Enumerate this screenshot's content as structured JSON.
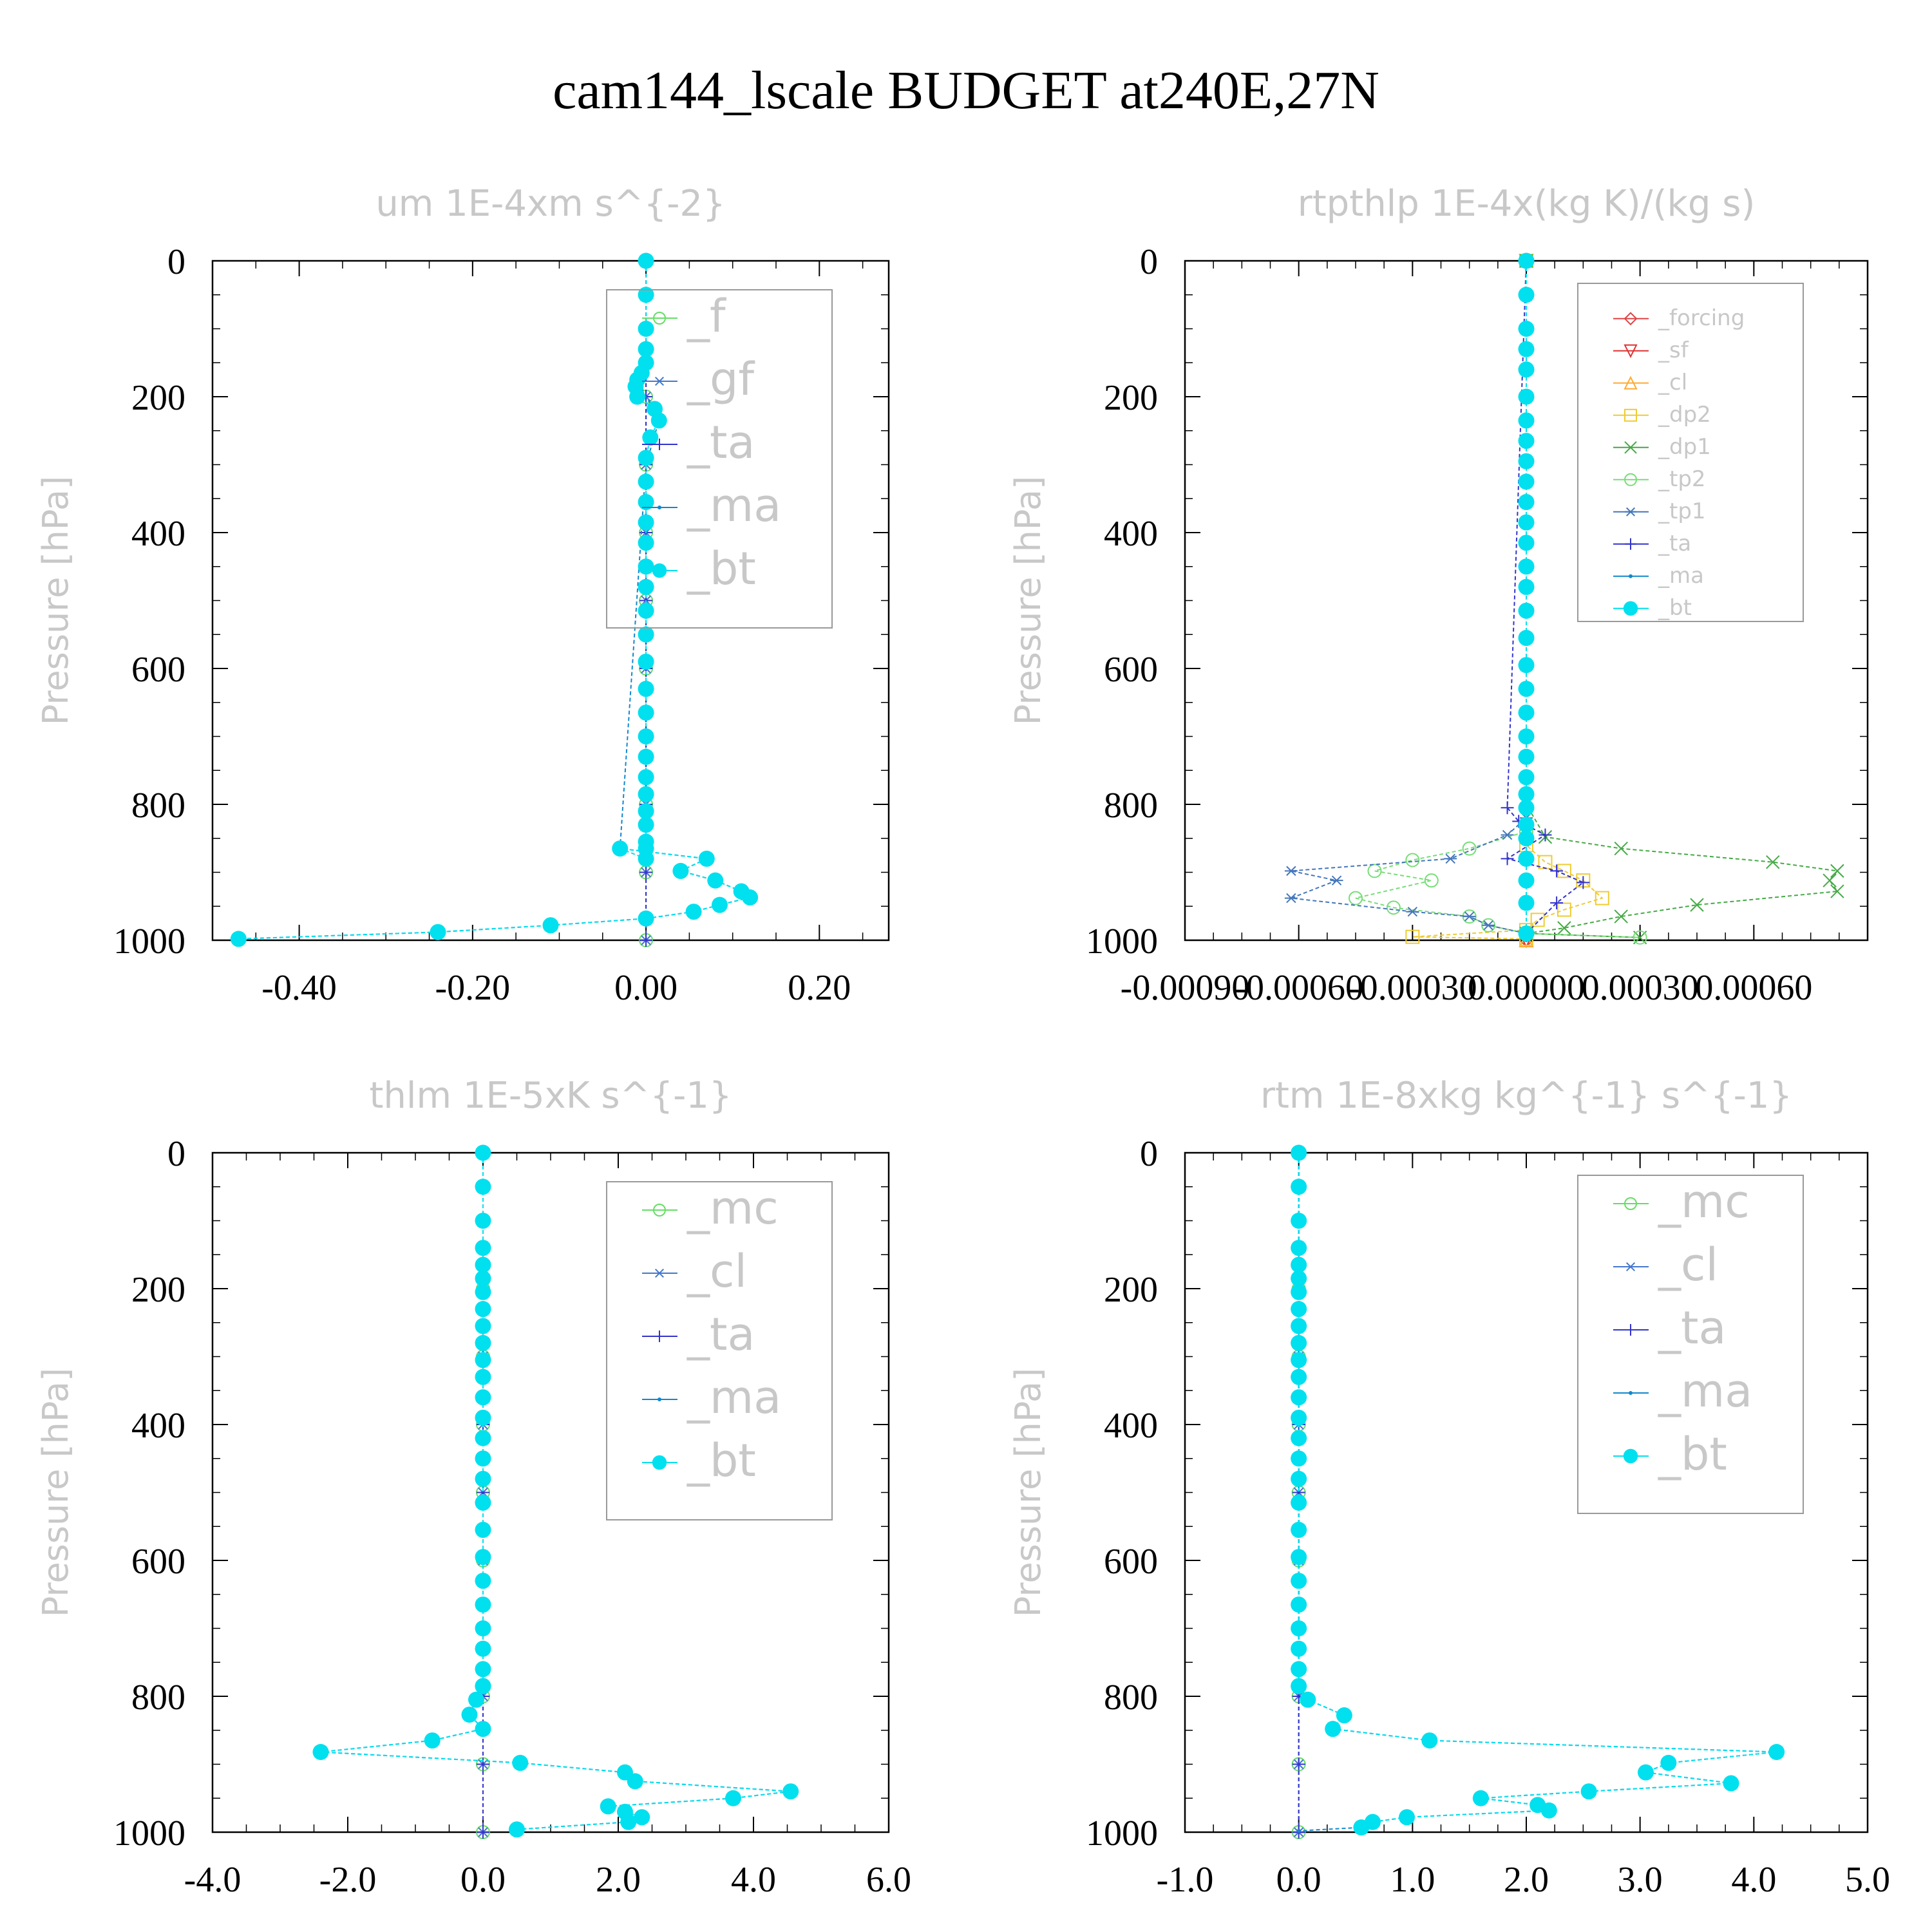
{
  "figure_title": "cam144_lscale  BUDGET at240E,27N",
  "chart_data": [
    {
      "type": "line",
      "title": "um   1E-4xm s^{-2}",
      "xlabel": "",
      "ylabel": "Pressure [hPa]",
      "xlim": [
        -0.5,
        0.28
      ],
      "ylim": [
        1000,
        0
      ],
      "x_ticks": [
        "-0.40",
        "-0.20",
        "0.00",
        "0.20"
      ],
      "y_ticks": [
        "0",
        "200",
        "400",
        "600",
        "800",
        "1000"
      ],
      "legend_entries": [
        "_f",
        "_gf",
        "_ta",
        "_ma",
        "_bt"
      ],
      "series": [
        {
          "name": "_f",
          "color": "#66dd66",
          "marker": "circle-open",
          "x": [
            0,
            0,
            0,
            0,
            0,
            0,
            0,
            0,
            0,
            0,
            0
          ],
          "y": [
            0,
            100,
            200,
            300,
            400,
            500,
            600,
            700,
            800,
            900,
            1000
          ]
        },
        {
          "name": "_gf",
          "color": "#4477cc",
          "marker": "asterisk",
          "x": [
            0,
            0,
            0,
            0,
            0,
            0,
            0,
            0,
            0,
            0,
            0
          ],
          "y": [
            0,
            100,
            200,
            300,
            400,
            500,
            600,
            700,
            800,
            900,
            1000
          ]
        },
        {
          "name": "_ta",
          "color": "#3333cc",
          "marker": "plus",
          "x": [
            0,
            0,
            0,
            0,
            0,
            0,
            0,
            0,
            0,
            0,
            0
          ],
          "y": [
            0,
            100,
            200,
            300,
            400,
            500,
            600,
            700,
            800,
            900,
            1000
          ]
        },
        {
          "name": "_ma",
          "color": "#1188cc",
          "marker": "dot",
          "x": [
            0,
            0,
            0,
            -0.005,
            0.01,
            0.015,
            0,
            -0.03,
            0.07,
            0.04,
            0.08,
            0.11,
            0.12,
            0.085,
            0.055,
            0,
            -0.11,
            -0.24,
            -0.47
          ],
          "y": [
            0,
            100,
            150,
            190,
            220,
            235,
            300,
            865,
            880,
            898,
            912,
            928,
            937,
            948,
            958,
            968,
            978,
            988,
            998
          ]
        },
        {
          "name": "_bt",
          "color": "#00e0ee",
          "marker": "circle-filled",
          "x": [
            0,
            0,
            0,
            0,
            0,
            -0.005,
            -0.01,
            -0.012,
            -0.01,
            0.01,
            0.015,
            0.005,
            0,
            0,
            0,
            0,
            0,
            0,
            0,
            0,
            0,
            0,
            0,
            0,
            0,
            0,
            0,
            0,
            0,
            0,
            0,
            0,
            0,
            -0.03,
            0.07,
            0.04,
            0.08,
            0.11,
            0.12,
            0.085,
            0.055,
            0,
            -0.11,
            -0.24,
            -0.47
          ],
          "y": [
            0,
            50,
            100,
            130,
            150,
            165,
            175,
            185,
            200,
            218,
            235,
            260,
            290,
            325,
            355,
            385,
            415,
            450,
            480,
            515,
            550,
            590,
            630,
            665,
            700,
            730,
            760,
            785,
            810,
            830,
            855,
            865,
            880,
            865,
            880,
            898,
            912,
            928,
            937,
            948,
            958,
            968,
            978,
            988,
            998
          ]
        }
      ]
    },
    {
      "type": "line",
      "title": "rtpthlp   1E-4x(kg K)/(kg s)",
      "xlabel": "",
      "ylabel": "Pressure [hPa]",
      "xlim": [
        -0.0009,
        0.0009
      ],
      "ylim": [
        1000,
        0
      ],
      "x_ticks": [
        "-0.00090",
        "-0.00060",
        "-0.00030",
        "0.00000",
        "0.00030",
        "0.00060"
      ],
      "y_ticks": [
        "0",
        "200",
        "400",
        "600",
        "800",
        "1000"
      ],
      "legend_entries": [
        "_forcing",
        "_sf",
        "_cl",
        "_dp2",
        "_dp1",
        "_tp2",
        "_tp1",
        "_ta",
        "_ma",
        "_bt"
      ],
      "series": [
        {
          "name": "_forcing",
          "color": "#dd4444",
          "marker": "diamond-open",
          "x": [
            0,
            0
          ],
          "y": [
            0,
            1000
          ]
        },
        {
          "name": "_sf",
          "color": "#dd3333",
          "marker": "triangle-down",
          "x": [
            0,
            0
          ],
          "y": [
            0,
            1000
          ]
        },
        {
          "name": "_cl",
          "color": "#ffaa33",
          "marker": "triangle-up",
          "x": [
            0,
            0
          ],
          "y": [
            0,
            1000
          ]
        },
        {
          "name": "_dp2",
          "color": "#eecc33",
          "marker": "square-open",
          "x": [
            0,
            0,
            5e-05,
            0.0001,
            0.00015,
            0.0002,
            0.0001,
            3e-05,
            0,
            -0.0003,
            0
          ],
          "y": [
            0,
            860,
            885,
            898,
            912,
            938,
            955,
            970,
            985,
            995,
            998
          ]
        },
        {
          "name": "_dp1",
          "color": "#44aa44",
          "marker": "x",
          "x": [
            0,
            0,
            5e-05,
            0.00025,
            0.00065,
            0.00082,
            0.0008,
            0.00082,
            0.00045,
            0.00025,
            0.0001,
            0,
            0.0003
          ],
          "y": [
            0,
            800,
            848,
            865,
            885,
            898,
            912,
            928,
            948,
            965,
            982,
            990,
            996
          ]
        },
        {
          "name": "_tp2",
          "color": "#77dd77",
          "marker": "circle-open",
          "x": [
            0,
            0,
            -0.00015,
            -0.0003,
            -0.0004,
            -0.00025,
            -0.00045,
            -0.00035,
            -0.00015,
            -0.0001,
            0,
            0.0003
          ],
          "y": [
            0,
            840,
            865,
            882,
            898,
            912,
            938,
            952,
            965,
            978,
            990,
            996
          ]
        },
        {
          "name": "_tp1",
          "color": "#4477bb",
          "marker": "asterisk",
          "x": [
            0,
            0,
            -5e-05,
            -0.0002,
            -0.00062,
            -0.0005,
            -0.00062,
            -0.0003,
            -0.00015,
            -0.0001,
            0
          ],
          "y": [
            0,
            820,
            845,
            880,
            898,
            912,
            938,
            958,
            965,
            978,
            990
          ]
        },
        {
          "name": "_ta",
          "color": "#3333cc",
          "marker": "plus",
          "x": [
            0,
            -5e-05,
            -2e-05,
            5e-05,
            -5e-05,
            8e-05,
            0.00015,
            8e-05,
            0
          ],
          "y": [
            0,
            805,
            825,
            845,
            880,
            898,
            915,
            945,
            990
          ]
        },
        {
          "name": "_ma",
          "color": "#1188cc",
          "marker": "dot",
          "x": [
            0,
            0
          ],
          "y": [
            0,
            1000
          ]
        },
        {
          "name": "_bt",
          "color": "#00e0ee",
          "marker": "circle-filled",
          "x": [
            0,
            0,
            0,
            0,
            0,
            0,
            0,
            0,
            0,
            0,
            0,
            0,
            0,
            0,
            0,
            0,
            0,
            0,
            0,
            0,
            0,
            0,
            0,
            0,
            0,
            0,
            0,
            0,
            0,
            0,
            0
          ],
          "y": [
            0,
            50,
            100,
            130,
            160,
            200,
            235,
            265,
            295,
            325,
            355,
            385,
            415,
            450,
            480,
            515,
            555,
            595,
            630,
            665,
            700,
            730,
            760,
            785,
            805,
            830,
            850,
            880,
            912,
            945,
            990
          ]
        }
      ]
    },
    {
      "type": "line",
      "title": "thlm   1E-5xK s^{-1}",
      "xlabel": "",
      "ylabel": "Pressure [hPa]",
      "xlim": [
        -4.0,
        6.0
      ],
      "ylim": [
        1000,
        0
      ],
      "x_ticks": [
        "-4.0",
        "-2.0",
        "0.0",
        "2.0",
        "4.0",
        "6.0"
      ],
      "y_ticks": [
        "0",
        "200",
        "400",
        "600",
        "800",
        "1000"
      ],
      "legend_entries": [
        "_mc",
        "_cl",
        "_ta",
        "_ma",
        "_bt"
      ],
      "series": [
        {
          "name": "_mc",
          "color": "#66dd66",
          "marker": "circle-open",
          "x": [
            0,
            0,
            0,
            0,
            0,
            0,
            0,
            0,
            0,
            0,
            0
          ],
          "y": [
            0,
            100,
            200,
            300,
            400,
            500,
            600,
            700,
            800,
            900,
            1000
          ]
        },
        {
          "name": "_cl",
          "color": "#4477cc",
          "marker": "asterisk",
          "x": [
            0,
            0,
            0,
            0,
            0,
            0,
            0,
            0,
            0,
            0,
            0
          ],
          "y": [
            0,
            100,
            200,
            300,
            400,
            500,
            600,
            700,
            800,
            900,
            1000
          ]
        },
        {
          "name": "_ta",
          "color": "#3333cc",
          "marker": "plus",
          "x": [
            0,
            0,
            0,
            0,
            0,
            0,
            0,
            0,
            0,
            0,
            0
          ],
          "y": [
            0,
            100,
            200,
            300,
            400,
            500,
            600,
            700,
            800,
            900,
            1000
          ]
        },
        {
          "name": "_ma",
          "color": "#1188cc",
          "marker": "dot",
          "x": [
            0,
            0,
            -0.1,
            -0.2,
            0,
            -0.75,
            -2.4,
            0.55,
            2.1,
            2.25,
            4.55,
            3.7,
            1.85,
            2.1,
            2.35,
            2.15,
            0.5
          ],
          "y": [
            0,
            785,
            805,
            827,
            848,
            865,
            882,
            898,
            912,
            925,
            940,
            950,
            962,
            970,
            978,
            985,
            996
          ]
        },
        {
          "name": "_bt",
          "color": "#00e0ee",
          "marker": "circle-filled",
          "x": [
            0,
            0,
            0,
            0,
            0,
            0,
            0,
            0,
            0,
            0,
            0,
            0,
            0,
            0,
            0,
            0,
            0,
            0,
            0,
            0,
            0,
            0,
            0,
            0,
            0,
            0,
            0,
            -0.1,
            -0.2,
            0,
            -0.75,
            -2.4,
            0.55,
            2.1,
            2.25,
            4.55,
            3.7,
            1.85,
            2.1,
            2.35,
            2.15,
            0.5
          ],
          "y": [
            0,
            50,
            100,
            140,
            165,
            185,
            205,
            230,
            255,
            280,
            305,
            330,
            360,
            390,
            420,
            450,
            480,
            515,
            555,
            595,
            630,
            665,
            700,
            730,
            760,
            785,
            785,
            805,
            827,
            848,
            865,
            882,
            898,
            912,
            925,
            940,
            950,
            962,
            970,
            978,
            985,
            996
          ]
        }
      ]
    },
    {
      "type": "line",
      "title": "rtm   1E-8xkg kg^{-1} s^{-1}",
      "xlabel": "",
      "ylabel": "Pressure [hPa]",
      "xlim": [
        -1.0,
        5.0
      ],
      "ylim": [
        1000,
        0
      ],
      "x_ticks": [
        "-1.0",
        "0.0",
        "1.0",
        "2.0",
        "3.0",
        "4.0",
        "5.0"
      ],
      "y_ticks": [
        "0",
        "200",
        "400",
        "600",
        "800",
        "1000"
      ],
      "legend_entries": [
        "_mc",
        "_cl",
        "_ta",
        "_ma",
        "_bt"
      ],
      "series": [
        {
          "name": "_mc",
          "color": "#66dd66",
          "marker": "circle-open",
          "x": [
            0,
            0,
            0,
            0,
            0,
            0,
            0,
            0,
            0,
            0,
            0
          ],
          "y": [
            0,
            100,
            200,
            300,
            400,
            500,
            600,
            700,
            800,
            900,
            1000
          ]
        },
        {
          "name": "_cl",
          "color": "#4477cc",
          "marker": "asterisk",
          "x": [
            0,
            0,
            0,
            0,
            0,
            0,
            0,
            0,
            0,
            0,
            0
          ],
          "y": [
            0,
            100,
            200,
            300,
            400,
            500,
            600,
            700,
            800,
            900,
            1000
          ]
        },
        {
          "name": "_ta",
          "color": "#3333cc",
          "marker": "plus",
          "x": [
            0,
            0,
            0,
            0,
            0,
            0,
            0,
            0,
            0,
            0,
            0
          ],
          "y": [
            0,
            100,
            200,
            300,
            400,
            500,
            600,
            700,
            800,
            900,
            1000
          ]
        },
        {
          "name": "_ma",
          "color": "#1188cc",
          "marker": "dot",
          "x": [
            0,
            0,
            0.08,
            0.4,
            0.3,
            1.15,
            4.2,
            3.25,
            3.05,
            3.8,
            2.55,
            1.6,
            2.1,
            2.2,
            0.95,
            0.65,
            0.55,
            0
          ],
          "y": [
            0,
            785,
            805,
            828,
            848,
            865,
            882,
            898,
            912,
            928,
            940,
            950,
            960,
            968,
            978,
            985,
            993,
            998
          ]
        },
        {
          "name": "_bt",
          "color": "#00e0ee",
          "marker": "circle-filled",
          "x": [
            0,
            0,
            0,
            0,
            0,
            0,
            0,
            0,
            0,
            0,
            0,
            0,
            0,
            0,
            0,
            0,
            0,
            0,
            0,
            0,
            0,
            0,
            0,
            0,
            0,
            0,
            0.08,
            0.4,
            0.3,
            1.15,
            4.2,
            3.25,
            3.05,
            3.8,
            2.55,
            1.6,
            2.1,
            2.2,
            0.95,
            0.65,
            0.55
          ],
          "y": [
            0,
            50,
            100,
            140,
            165,
            185,
            205,
            230,
            255,
            280,
            305,
            330,
            360,
            390,
            420,
            450,
            480,
            515,
            555,
            595,
            630,
            665,
            700,
            730,
            760,
            785,
            805,
            828,
            848,
            865,
            882,
            898,
            912,
            928,
            940,
            950,
            960,
            968,
            978,
            985,
            993
          ]
        }
      ]
    }
  ]
}
